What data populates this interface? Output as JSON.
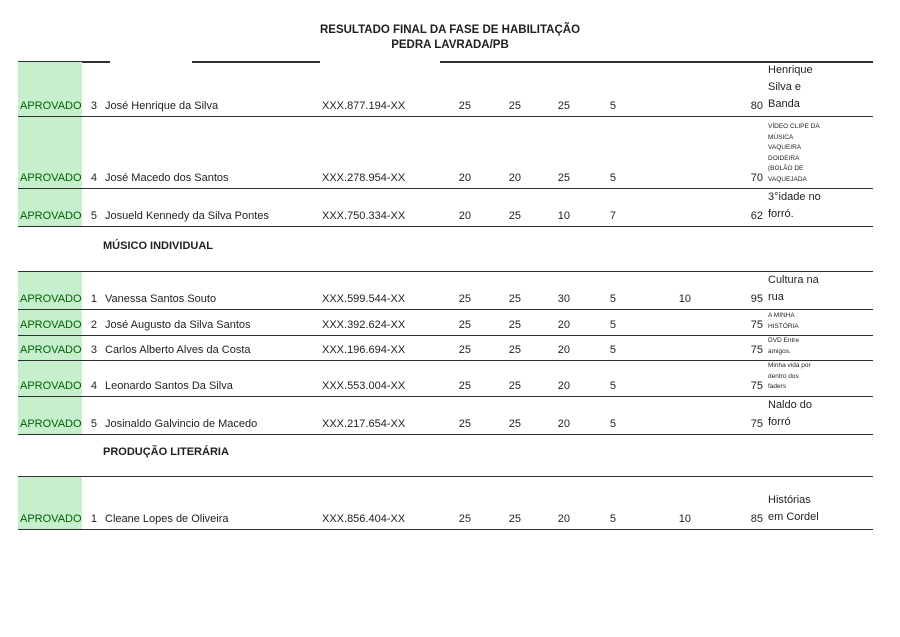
{
  "title": {
    "line1": "RESULTADO FINAL DA FASE DE HABILITAÇÃO",
    "line2": "PEDRA LAVRADA/PB"
  },
  "colors": {
    "approved_bg": "#C6EFCE",
    "approved_text": "#006100",
    "line": "#2f2f2f"
  },
  "sections": [
    {
      "header": "",
      "rows": [
        {
          "status": "APROVADO",
          "num": "3",
          "name": "José Henrique da Silva",
          "cpf": "XXX.877.194-XX",
          "scores": [
            "25",
            "25",
            "25",
            "5",
            ""
          ],
          "total": "80",
          "desc": "Henrique\nSilva e\nBanda",
          "desc_small": false
        },
        {
          "status": "APROVADO",
          "num": "4",
          "name": "José Macedo dos Santos",
          "cpf": "XXX.278.954-XX",
          "scores": [
            "20",
            "20",
            "25",
            "5",
            ""
          ],
          "total": "70",
          "desc": "VÍDEO CLIPE DA\nMÚSICA\nVAQUEIRA\nDOIDEIRA\n(BOLÃO DE\nVAQUEJADA",
          "desc_small": true
        },
        {
          "status": "APROVADO",
          "num": "5",
          "name": "Josueld Kennedy da Silva Pontes",
          "cpf": "XXX.750.334-XX",
          "scores": [
            "20",
            "25",
            "10",
            "7",
            ""
          ],
          "total": "62",
          "desc": "3°idade no\nforró.",
          "desc_small": false
        }
      ]
    },
    {
      "header": "MÚSICO INDIVIDUAL",
      "rows": [
        {
          "status": "APROVADO",
          "num": "1",
          "name": "Vanessa Santos Souto",
          "cpf": "XXX.599.544-XX",
          "scores": [
            "25",
            "25",
            "30",
            "5",
            "10"
          ],
          "total": "95",
          "desc": "Cultura na\nrua",
          "desc_small": false
        },
        {
          "status": "APROVADO",
          "num": "2",
          "name": "José Augusto da Silva Santos",
          "cpf": "XXX.392.624-XX",
          "scores": [
            "25",
            "25",
            "20",
            "5",
            ""
          ],
          "total": "75",
          "desc": "A MINHA\nHISTÓRIA",
          "desc_small": true
        },
        {
          "status": "APROVADO",
          "num": "3",
          "name": "Carlos Alberto Alves da Costa",
          "cpf": "XXX.196.694-XX",
          "scores": [
            "25",
            "25",
            "20",
            "5",
            ""
          ],
          "total": "75",
          "desc": "DVD Entre\namigos.",
          "desc_small": true
        },
        {
          "status": "APROVADO",
          "num": "4",
          "name": "Leonardo Santos Da Silva",
          "cpf": "XXX.553.004-XX",
          "scores": [
            "25",
            "25",
            "20",
            "5",
            ""
          ],
          "total": "75",
          "desc": "Minha vida por\ndentro dos\nfaders",
          "desc_small": true
        },
        {
          "status": "APROVADO",
          "num": "5",
          "name": "Josinaldo Galvincio de Macedo",
          "cpf": "XXX.217.654-XX",
          "scores": [
            "25",
            "25",
            "20",
            "5",
            ""
          ],
          "total": "75",
          "desc": "Naldo do\nforró",
          "desc_small": false
        }
      ]
    },
    {
      "header": "PRODUÇÃO LITERÁRIA",
      "rows": [
        {
          "status": "APROVADO",
          "num": "1",
          "name": "Cleane Lopes de Oliveira",
          "cpf": "XXX.856.404-XX",
          "scores": [
            "25",
            "25",
            "20",
            "5",
            "10"
          ],
          "total": "85",
          "desc": "Histórias\nem Cordel",
          "desc_small": false
        }
      ]
    }
  ]
}
